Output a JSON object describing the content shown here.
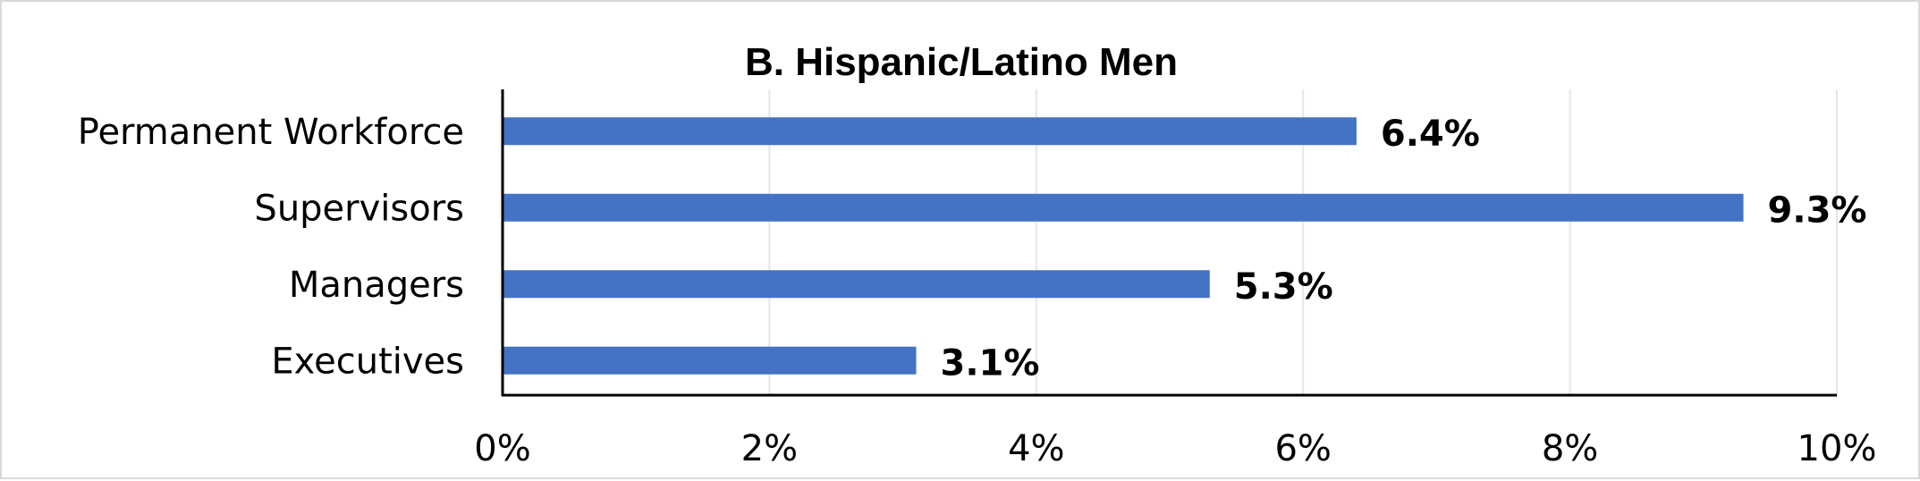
{
  "chart_data": {
    "type": "bar",
    "orientation": "horizontal",
    "title": "B. Hispanic/Latino Men",
    "categories": [
      "Permanent Workforce",
      "Supervisors",
      "Managers",
      "Executives"
    ],
    "values": [
      6.4,
      9.3,
      5.3,
      3.1
    ],
    "data_labels": [
      "6.4%",
      "9.3%",
      "5.3%",
      "3.1%"
    ],
    "xlim": [
      0,
      10
    ],
    "x_ticks": [
      0,
      2,
      4,
      6,
      8,
      10
    ],
    "x_tick_labels": [
      "0%",
      "2%",
      "4%",
      "6%",
      "8%",
      "10%"
    ],
    "grid": "vertical",
    "legend": "none",
    "colors": {
      "bar": "#4472c4",
      "grid": "#e6e6e6",
      "axis": "#000000"
    }
  }
}
